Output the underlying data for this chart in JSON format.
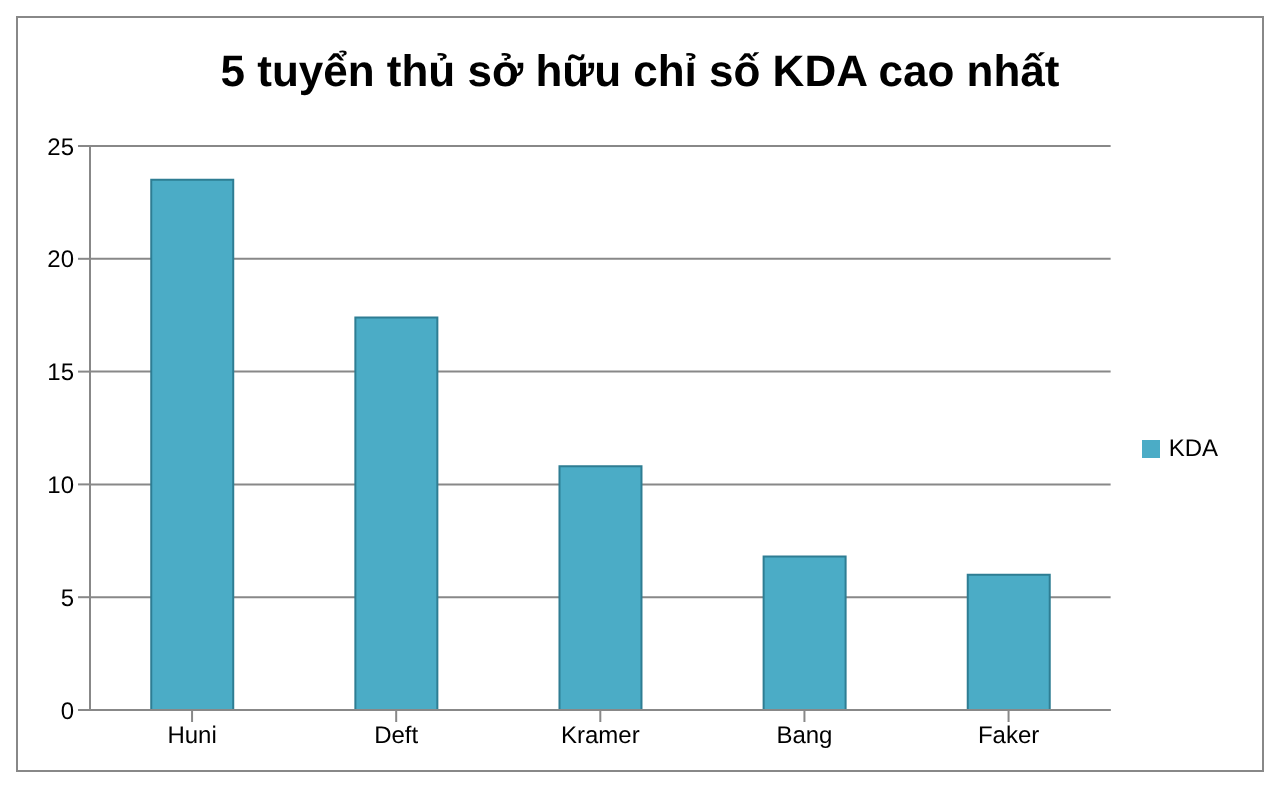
{
  "chart_data": {
    "type": "bar",
    "title": "5 tuyển thủ sở hữu chỉ số KDA cao nhất",
    "categories": [
      "Huni",
      "Deft",
      "Kramer",
      "Bang",
      "Faker"
    ],
    "series": [
      {
        "name": "KDA",
        "color": "#4bacc6",
        "values": [
          23.5,
          17.4,
          10.8,
          6.8,
          6.0
        ]
      }
    ],
    "ylim": [
      0,
      25
    ],
    "yticks": [
      0,
      5,
      10,
      15,
      20,
      25
    ],
    "grid": "y",
    "legend": "right"
  }
}
